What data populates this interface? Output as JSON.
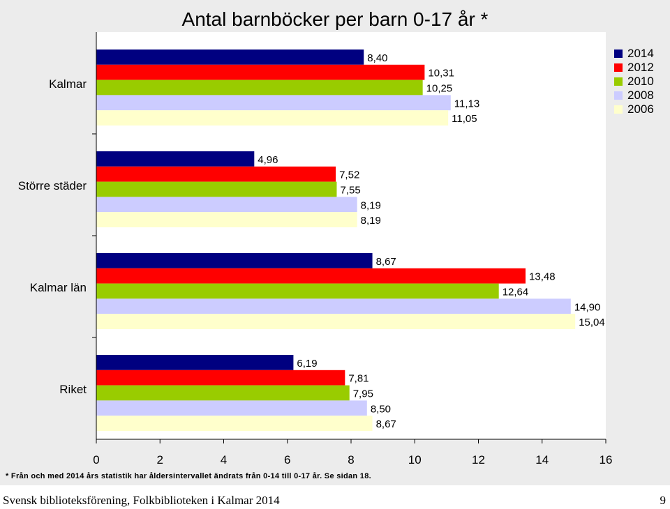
{
  "footer": {
    "publisher": "Svensk biblioteksförening, Folkbiblioteken i Kalmar 2014",
    "page_number": "9"
  },
  "chart_data": {
    "type": "bar",
    "orientation": "horizontal",
    "title": "Antal barnböcker per barn 0-17 år *",
    "footnote": "* Från och med 2014 års statistik har åldersintervallet ändrats från 0-14 till 0-17 år. Se sidan 18.",
    "categories": [
      "Kalmar",
      "Större städer",
      "Kalmar län",
      "Riket"
    ],
    "series": [
      {
        "name": "2014",
        "color": "#000080",
        "values": [
          8.4,
          4.96,
          8.67,
          6.19
        ],
        "labels": [
          "8,40",
          "4,96",
          "8,67",
          "6,19"
        ]
      },
      {
        "name": "2012",
        "color": "#ff0000",
        "values": [
          10.31,
          7.52,
          13.48,
          7.81
        ],
        "labels": [
          "10,31",
          "7,52",
          "13,48",
          "7,81"
        ]
      },
      {
        "name": "2010",
        "color": "#99cc00",
        "values": [
          10.25,
          7.55,
          12.64,
          7.95
        ],
        "labels": [
          "10,25",
          "7,55",
          "12,64",
          "7,95"
        ]
      },
      {
        "name": "2008",
        "color": "#ccccff",
        "values": [
          11.13,
          8.19,
          14.9,
          8.5
        ],
        "labels": [
          "11,13",
          "8,19",
          "14,90",
          "8,50"
        ]
      },
      {
        "name": "2006",
        "color": "#ffffcc",
        "values": [
          11.05,
          8.19,
          15.04,
          8.67
        ],
        "labels": [
          "11,05",
          "8,19",
          "15,04",
          "8,67"
        ]
      }
    ],
    "xlim": [
      0,
      16
    ],
    "x_ticks": [
      "0",
      "2",
      "4",
      "6",
      "8",
      "10",
      "12",
      "14",
      "16"
    ],
    "grid": false,
    "legend_position": "top-right"
  }
}
